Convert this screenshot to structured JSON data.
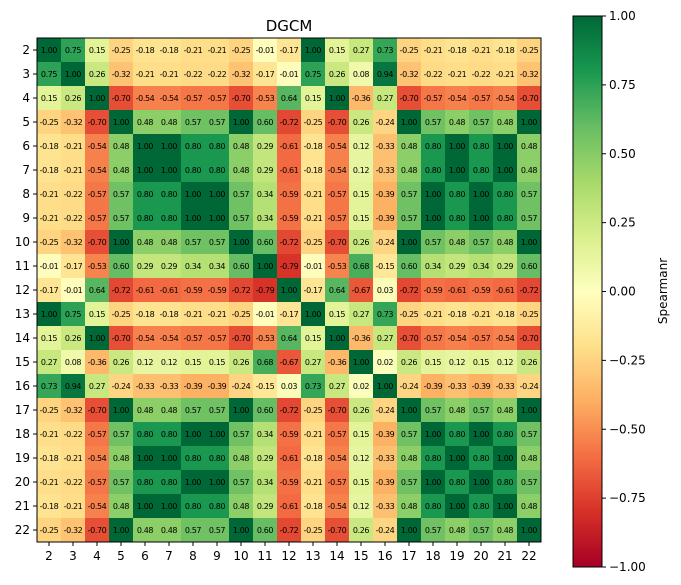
{
  "chart_data": {
    "type": "heatmap",
    "title": "DGCM",
    "xlabel": "",
    "ylabel": "",
    "labels": [
      "2",
      "3",
      "4",
      "5",
      "6",
      "7",
      "8",
      "9",
      "10",
      "11",
      "12",
      "13",
      "14",
      "15",
      "16",
      "17",
      "18",
      "19",
      "20",
      "21",
      "22"
    ],
    "colorbar": {
      "label": "Spearmanr",
      "range": [
        -1.0,
        1.0
      ],
      "ticks": [
        "1.00",
        "0.75",
        "0.50",
        "0.25",
        "0.00",
        "−0.25",
        "−0.50",
        "−0.75",
        "−1.00"
      ],
      "tick_values": [
        1.0,
        0.75,
        0.5,
        0.25,
        0.0,
        -0.25,
        -0.5,
        -0.75,
        -1.0
      ],
      "colormap": "RdYlGn"
    },
    "matrix": [
      [
        1.0,
        0.75,
        0.15,
        -0.25,
        -0.18,
        -0.18,
        -0.21,
        -0.21,
        -0.25,
        -0.01,
        -0.17,
        1.0,
        0.15,
        0.27,
        0.73,
        -0.25,
        -0.21,
        -0.18,
        -0.21,
        -0.18,
        -0.25
      ],
      [
        0.75,
        1.0,
        0.26,
        -0.32,
        -0.21,
        -0.21,
        -0.22,
        -0.22,
        -0.32,
        -0.17,
        -0.01,
        0.75,
        0.26,
        0.08,
        0.94,
        -0.32,
        -0.22,
        -0.21,
        -0.22,
        -0.21,
        -0.32
      ],
      [
        0.15,
        0.26,
        1.0,
        -0.7,
        -0.54,
        -0.54,
        -0.57,
        -0.57,
        -0.7,
        -0.53,
        0.64,
        0.15,
        1.0,
        -0.36,
        0.27,
        -0.7,
        -0.57,
        -0.54,
        -0.57,
        -0.54,
        -0.7
      ],
      [
        -0.25,
        -0.32,
        -0.7,
        1.0,
        0.48,
        0.48,
        0.57,
        0.57,
        1.0,
        0.6,
        -0.72,
        -0.25,
        -0.7,
        0.26,
        -0.24,
        1.0,
        0.57,
        0.48,
        0.57,
        0.48,
        1.0
      ],
      [
        -0.18,
        -0.21,
        -0.54,
        0.48,
        1.0,
        1.0,
        0.8,
        0.8,
        0.48,
        0.29,
        -0.61,
        -0.18,
        -0.54,
        0.12,
        -0.33,
        0.48,
        0.8,
        1.0,
        0.8,
        1.0,
        0.48
      ],
      [
        -0.18,
        -0.21,
        -0.54,
        0.48,
        1.0,
        1.0,
        0.8,
        0.8,
        0.48,
        0.29,
        -0.61,
        -0.18,
        -0.54,
        0.12,
        -0.33,
        0.48,
        0.8,
        1.0,
        0.8,
        1.0,
        0.48
      ],
      [
        -0.21,
        -0.22,
        -0.57,
        0.57,
        0.8,
        0.8,
        1.0,
        1.0,
        0.57,
        0.34,
        -0.59,
        -0.21,
        -0.57,
        0.15,
        -0.39,
        0.57,
        1.0,
        0.8,
        1.0,
        0.8,
        0.57
      ],
      [
        -0.21,
        -0.22,
        -0.57,
        0.57,
        0.8,
        0.8,
        1.0,
        1.0,
        0.57,
        0.34,
        -0.59,
        -0.21,
        -0.57,
        0.15,
        -0.39,
        0.57,
        1.0,
        0.8,
        1.0,
        0.8,
        0.57
      ],
      [
        -0.25,
        -0.32,
        -0.7,
        1.0,
        0.48,
        0.48,
        0.57,
        0.57,
        1.0,
        0.6,
        -0.72,
        -0.25,
        -0.7,
        0.26,
        -0.24,
        1.0,
        0.57,
        0.48,
        0.57,
        0.48,
        1.0
      ],
      [
        -0.01,
        -0.17,
        -0.53,
        0.6,
        0.29,
        0.29,
        0.34,
        0.34,
        0.6,
        1.0,
        -0.79,
        -0.01,
        -0.53,
        0.68,
        -0.15,
        0.6,
        0.34,
        0.29,
        0.34,
        0.29,
        0.6
      ],
      [
        -0.17,
        -0.01,
        0.64,
        -0.72,
        -0.61,
        -0.61,
        -0.59,
        -0.59,
        -0.72,
        -0.79,
        1.0,
        -0.17,
        0.64,
        -0.67,
        0.03,
        -0.72,
        -0.59,
        -0.61,
        -0.59,
        -0.61,
        -0.72
      ],
      [
        1.0,
        0.75,
        0.15,
        -0.25,
        -0.18,
        -0.18,
        -0.21,
        -0.21,
        -0.25,
        -0.01,
        -0.17,
        1.0,
        0.15,
        0.27,
        0.73,
        -0.25,
        -0.21,
        -0.18,
        -0.21,
        -0.18,
        -0.25
      ],
      [
        0.15,
        0.26,
        1.0,
        -0.7,
        -0.54,
        -0.54,
        -0.57,
        -0.57,
        -0.7,
        -0.53,
        0.64,
        0.15,
        1.0,
        -0.36,
        0.27,
        -0.7,
        -0.57,
        -0.54,
        -0.57,
        -0.54,
        -0.7
      ],
      [
        0.27,
        0.08,
        -0.36,
        0.26,
        0.12,
        0.12,
        0.15,
        0.15,
        0.26,
        0.68,
        -0.67,
        0.27,
        -0.36,
        1.0,
        0.02,
        0.26,
        0.15,
        0.12,
        0.15,
        0.12,
        0.26
      ],
      [
        0.73,
        0.94,
        0.27,
        -0.24,
        -0.33,
        -0.33,
        -0.39,
        -0.39,
        -0.24,
        -0.15,
        0.03,
        0.73,
        0.27,
        0.02,
        1.0,
        -0.24,
        -0.39,
        -0.33,
        -0.39,
        -0.33,
        -0.24
      ],
      [
        -0.25,
        -0.32,
        -0.7,
        1.0,
        0.48,
        0.48,
        0.57,
        0.57,
        1.0,
        0.6,
        -0.72,
        -0.25,
        -0.7,
        0.26,
        -0.24,
        1.0,
        0.57,
        0.48,
        0.57,
        0.48,
        1.0
      ],
      [
        -0.21,
        -0.22,
        -0.57,
        0.57,
        0.8,
        0.8,
        1.0,
        1.0,
        0.57,
        0.34,
        -0.59,
        -0.21,
        -0.57,
        0.15,
        -0.39,
        0.57,
        1.0,
        0.8,
        1.0,
        0.8,
        0.57
      ],
      [
        -0.18,
        -0.21,
        -0.54,
        0.48,
        1.0,
        1.0,
        0.8,
        0.8,
        0.48,
        0.29,
        -0.61,
        -0.18,
        -0.54,
        0.12,
        -0.33,
        0.48,
        0.8,
        1.0,
        0.8,
        1.0,
        0.48
      ],
      [
        -0.21,
        -0.22,
        -0.57,
        0.57,
        0.8,
        0.8,
        1.0,
        1.0,
        0.57,
        0.34,
        -0.59,
        -0.21,
        -0.57,
        0.15,
        -0.39,
        0.57,
        1.0,
        0.8,
        1.0,
        0.8,
        0.57
      ],
      [
        -0.18,
        -0.21,
        -0.54,
        0.48,
        1.0,
        1.0,
        0.8,
        0.8,
        0.48,
        0.29,
        -0.61,
        -0.18,
        -0.54,
        0.12,
        -0.33,
        0.48,
        0.8,
        1.0,
        0.8,
        1.0,
        0.48
      ],
      [
        -0.25,
        -0.32,
        -0.7,
        1.0,
        0.48,
        0.48,
        0.57,
        0.57,
        1.0,
        0.6,
        -0.72,
        -0.25,
        -0.7,
        0.26,
        -0.24,
        1.0,
        0.57,
        0.48,
        0.57,
        0.48,
        1.0
      ]
    ]
  }
}
